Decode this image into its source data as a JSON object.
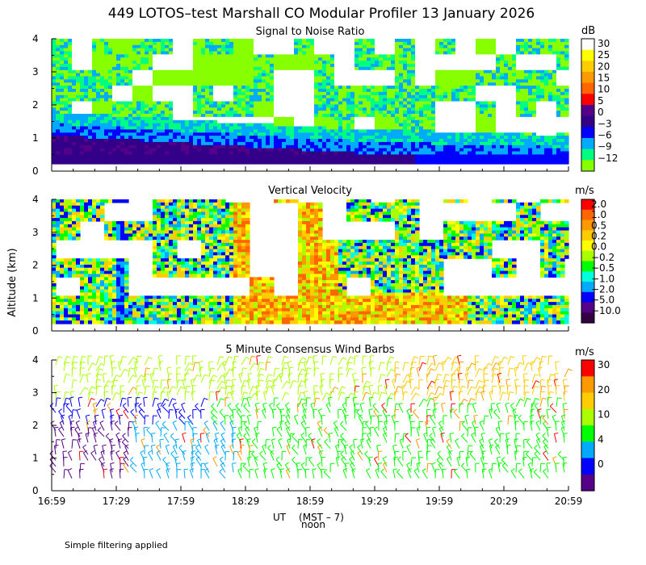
{
  "title": "449 LOTOS–test Marshall CO Modular Profiler 13 January 2026",
  "footer_note": "Simple filtering applied",
  "y_axis_label": "Altitude (km)",
  "x_axis": {
    "label": "UT",
    "sub_label": "(MST – 7)",
    "marker_label": "noon",
    "ticks": [
      "16:59",
      "17:29",
      "17:59",
      "18:29",
      "18:59",
      "19:29",
      "19:59",
      "20:29",
      "20:59"
    ]
  },
  "chart_data": [
    {
      "type": "heatmap",
      "title": "Signal to Noise Ratio",
      "unit": "dB",
      "ylim": [
        0,
        4
      ],
      "y_ticks": [
        "0",
        "1",
        "2",
        "3",
        "4"
      ],
      "x_ticks": [
        "16:59",
        "17:29",
        "17:59",
        "18:29",
        "18:59",
        "19:29",
        "19:59",
        "20:29",
        "20:59"
      ],
      "colorbar": {
        "labels": [
          "30",
          "25",
          "20",
          "15",
          "10",
          "5",
          "0",
          "−3",
          "−6",
          "−9",
          "−12"
        ],
        "colors": [
          "#ffffff",
          "#ffff00",
          "#ffcc00",
          "#ff9900",
          "#ff6600",
          "#ff0000",
          "#550088",
          "#330088",
          "#0000ff",
          "#00aaff",
          "#00ff80",
          "#88ff00"
        ]
      }
    },
    {
      "type": "heatmap",
      "title": "Vertical Velocity",
      "unit": "m/s",
      "ylim": [
        0,
        4
      ],
      "y_ticks": [
        "0",
        "1",
        "2",
        "3",
        "4"
      ],
      "x_ticks": [
        "16:59",
        "17:29",
        "17:59",
        "18:29",
        "18:59",
        "19:29",
        "19:59",
        "20:29",
        "20:59"
      ],
      "colorbar": {
        "labels": [
          "2.0",
          "1.0",
          "0.5",
          "0.2",
          "0.0",
          "−0.2",
          "−0.5",
          "−1.0",
          "−2.0",
          "−5.0",
          "−10.0"
        ],
        "colors": [
          "#ff0000",
          "#ff6600",
          "#ff9900",
          "#ffcc00",
          "#ffff00",
          "#aaff00",
          "#00ff00",
          "#00ffdd",
          "#00aaff",
          "#0000ff",
          "#550088",
          "#330044"
        ]
      }
    },
    {
      "type": "scatter",
      "title": "5 Minute Consensus Wind Barbs",
      "unit": "m/s",
      "ylim": [
        0,
        4
      ],
      "y_ticks": [
        "0",
        "1",
        "2",
        "3",
        "4"
      ],
      "x_ticks": [
        "16:59",
        "17:29",
        "17:59",
        "18:29",
        "18:59",
        "19:29",
        "19:59",
        "20:29",
        "20:59"
      ],
      "colorbar": {
        "labels": [
          "30",
          "20",
          "10",
          "4",
          "0"
        ],
        "colors": [
          "#ff0000",
          "#ff9900",
          "#ffcc00",
          "#aaff00",
          "#00ff00",
          "#00aaff",
          "#0000ff",
          "#550088"
        ]
      }
    }
  ]
}
